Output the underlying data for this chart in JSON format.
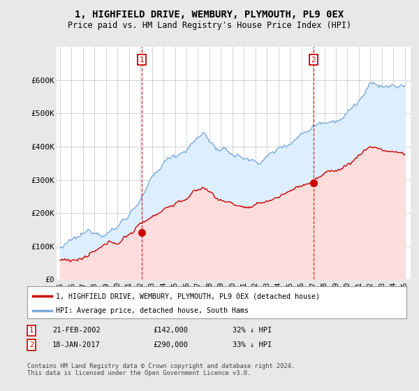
{
  "title": "1, HIGHFIELD DRIVE, WEMBURY, PLYMOUTH, PL9 0EX",
  "subtitle": "Price paid vs. HM Land Registry's House Price Index (HPI)",
  "title_fontsize": 10,
  "subtitle_fontsize": 8.5,
  "background_color": "#e8e8e8",
  "plot_bg_color": "#ffffff",
  "hpi_color": "#7aaadd",
  "hpi_fill_color": "#ddeeff",
  "price_color": "#cc0000",
  "price_fill_color": "#ffdddd",
  "ylim": [
    0,
    700000
  ],
  "yticks": [
    0,
    100000,
    200000,
    300000,
    400000,
    500000,
    600000
  ],
  "ytick_labels": [
    "£0",
    "£100K",
    "£200K",
    "£300K",
    "£400K",
    "£500K",
    "£600K"
  ],
  "xstart": 1995,
  "xend": 2025,
  "marker1_year": 2002.13,
  "marker1_price": 142000,
  "marker1_label": "1",
  "marker2_year": 2017.05,
  "marker2_price": 290000,
  "marker2_label": "2",
  "legend_line1": "1, HIGHFIELD DRIVE, WEMBURY, PLYMOUTH, PL9 0EX (detached house)",
  "legend_line2": "HPI: Average price, detached house, South Hams",
  "table_row1": [
    "1",
    "21-FEB-2002",
    "£142,000",
    "32% ↓ HPI"
  ],
  "table_row2": [
    "2",
    "18-JAN-2017",
    "£290,000",
    "33% ↓ HPI"
  ],
  "footer": "Contains HM Land Registry data © Crown copyright and database right 2024.\nThis data is licensed under the Open Government Licence v3.0."
}
